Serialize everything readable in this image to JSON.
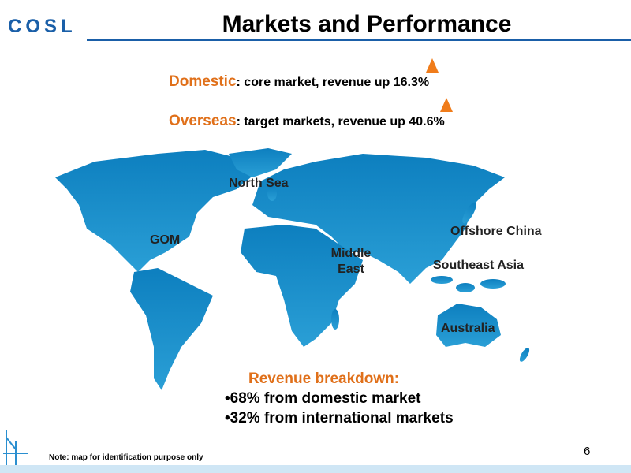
{
  "header": {
    "logo": "COSL",
    "title": "Markets and Performance"
  },
  "highlights": [
    {
      "label": "Domestic",
      "text": ": core market, revenue up 16.3%"
    },
    {
      "label": "Overseas",
      "text": ": target markets, revenue up 40.6%"
    }
  ],
  "map": {
    "labels": [
      "North Sea",
      "GOM",
      "Middle East",
      "Offshore China",
      "Southeast Asia",
      "Australia"
    ]
  },
  "breakdown": {
    "title": "Revenue breakdown:",
    "items": [
      "•68% from domestic market",
      "•32% from international markets"
    ]
  },
  "footer": {
    "note": "Note: map for identification purpose only",
    "page": "6"
  }
}
